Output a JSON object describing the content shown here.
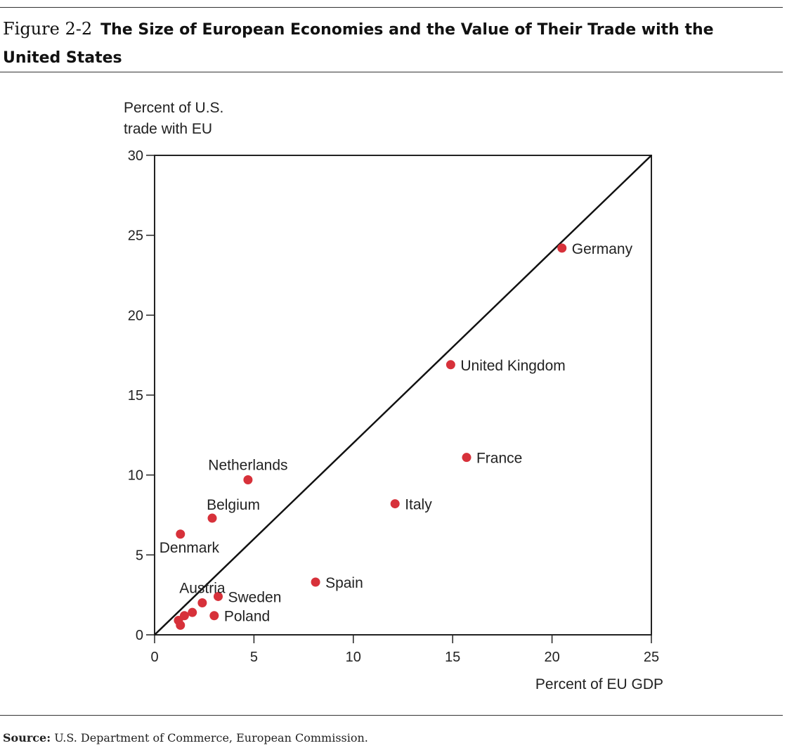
{
  "figure": {
    "label": "Figure 2-2",
    "title": "The Size of European Economies and the Value of Their Trade with the United States"
  },
  "source": {
    "prefix": "Source:",
    "text": "U.S. Department of Commerce, European Commission."
  },
  "chart_data": {
    "type": "scatter",
    "ylabel_lines": [
      "Percent of U.S.",
      "trade with EU"
    ],
    "xlabel": "Percent of EU GDP",
    "xlim": [
      0,
      25
    ],
    "ylim": [
      0,
      30
    ],
    "xticks": [
      0,
      5,
      10,
      15,
      20,
      25
    ],
    "yticks": [
      0,
      5,
      10,
      15,
      20,
      25,
      30
    ],
    "grid": false,
    "reference_line": {
      "from": [
        0,
        0
      ],
      "to": [
        25,
        30
      ]
    },
    "point_color": "#d7313a",
    "points": [
      {
        "label": "Germany",
        "x": 20.5,
        "y": 24.2,
        "label_pos": "right"
      },
      {
        "label": "United Kingdom",
        "x": 14.9,
        "y": 16.9,
        "label_pos": "right"
      },
      {
        "label": "France",
        "x": 15.7,
        "y": 11.1,
        "label_pos": "right"
      },
      {
        "label": "Italy",
        "x": 12.1,
        "y": 8.2,
        "label_pos": "right"
      },
      {
        "label": "Spain",
        "x": 8.1,
        "y": 3.3,
        "label_pos": "right"
      },
      {
        "label": "Netherlands",
        "x": 4.7,
        "y": 9.7,
        "label_pos": "above"
      },
      {
        "label": "Belgium",
        "x": 2.9,
        "y": 7.3,
        "label_pos": "above-right"
      },
      {
        "label": "Denmark",
        "x": 1.3,
        "y": 6.3,
        "label_pos": "below-right"
      },
      {
        "label": "Sweden",
        "x": 3.2,
        "y": 2.4,
        "label_pos": "right"
      },
      {
        "label": "Poland",
        "x": 3.0,
        "y": 1.2,
        "label_pos": "right"
      },
      {
        "label": "Austria",
        "x": 2.4,
        "y": 2.0,
        "label_pos": "above"
      },
      {
        "label": "",
        "x": 1.9,
        "y": 1.4,
        "label_pos": "none"
      },
      {
        "label": "",
        "x": 1.5,
        "y": 1.2,
        "label_pos": "none"
      },
      {
        "label": "",
        "x": 1.2,
        "y": 0.9,
        "label_pos": "none"
      },
      {
        "label": "",
        "x": 1.3,
        "y": 0.6,
        "label_pos": "none"
      }
    ]
  }
}
